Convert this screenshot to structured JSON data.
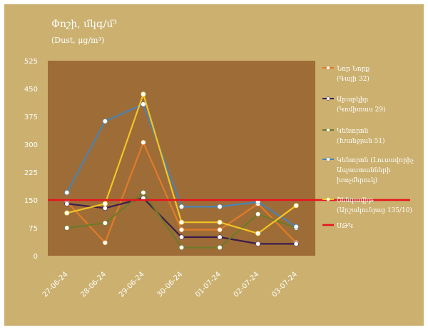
{
  "chart_data": {
    "type": "line",
    "title": "Փոշի, մկգ/մ³",
    "subtitle": "(Dust, μg/m³)",
    "categories": [
      "27-06-24",
      "28-06-24",
      "29-06-24",
      "30-06-24",
      "01-07-24",
      "02-07-24",
      "03-07-24"
    ],
    "yticks": [
      0,
      75,
      150,
      225,
      300,
      375,
      450,
      525
    ],
    "ylim": [
      0,
      525
    ],
    "grid": false,
    "legend_position": "right",
    "series": [
      {
        "name": "Նոր Նորք",
        "name2": "(Գայի 32)",
        "color": "#e07b2a",
        "values": [
          145,
          35,
          305,
          70,
          70,
          140,
          35
        ]
      },
      {
        "name": "Արաբկիր",
        "name2": "(Կոմիտաս 29)",
        "color": "#3c1c4c",
        "values": [
          140,
          128,
          155,
          50,
          50,
          32,
          32
        ]
      },
      {
        "name": "Կենտրոն",
        "name2": "(Խանջյան 51)",
        "color": "#6d7a2a",
        "values": [
          75,
          88,
          170,
          22,
          22,
          112,
          75
        ]
      },
      {
        "name": "Կենտրոն (Լուսավորիչ",
        "name2": "Ապաստանների",
        "name3": "խաչմերուկ)",
        "color": "#4a82b5",
        "values": [
          170,
          362,
          408,
          132,
          132,
          145,
          78
        ]
      },
      {
        "name": "Շենգավիթ",
        "name2": "(Արշակունյաց 135/10)",
        "color": "#f2c424",
        "values": [
          115,
          140,
          435,
          90,
          90,
          60,
          135
        ]
      }
    ],
    "reference_line": {
      "name": "ՍԹԿ",
      "value": 150,
      "color": "#e8141c"
    }
  }
}
